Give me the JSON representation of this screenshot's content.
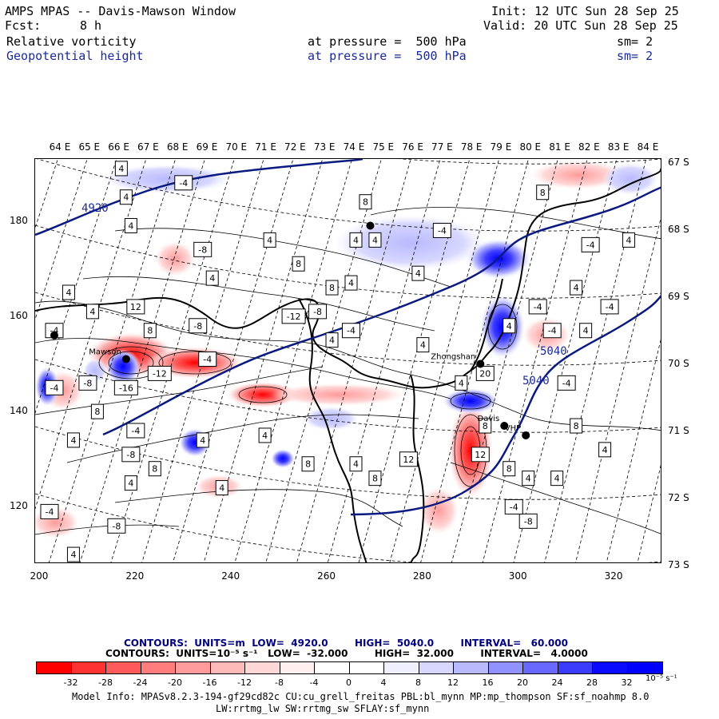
{
  "header": {
    "title": "AMPS MPAS -- Davis-Mawson Window",
    "fcst_label": "Fcst:",
    "fcst_value": "8 h",
    "init": "Init: 12 UTC Sun 28 Sep 25",
    "valid": "Valid: 20 UTC Sun 28 Sep 25",
    "fields": [
      {
        "name": "Relative vorticity",
        "level": "at pressure =  500 hPa",
        "smoothing": "sm= 2"
      },
      {
        "name": "Geopotential height",
        "level": "at pressure =  500 hPa",
        "smoothing": "sm= 2"
      }
    ]
  },
  "map": {
    "lon_labels": [
      "64 E",
      "65 E",
      "66 E",
      "67 E",
      "68 E",
      "69 E",
      "70 E",
      "71 E",
      "72 E",
      "73 E",
      "74 E",
      "75 E",
      "76 E",
      "77 E",
      "78 E",
      "79 E",
      "80 E",
      "81 E",
      "82 E",
      "83 E",
      "84 E"
    ],
    "lat_labels": [
      "67 S",
      "68 S",
      "69 S",
      "70 S",
      "71 S",
      "72 S",
      "73 S"
    ],
    "x_ticks": [
      "200",
      "220",
      "240",
      "260",
      "280",
      "300",
      "320"
    ],
    "y_ticks": [
      "120",
      "140",
      "160",
      "180"
    ],
    "x_range": [
      199,
      330
    ],
    "y_range": [
      193,
      108
    ],
    "stations": [
      {
        "name": "Davis",
        "x": 297,
        "y": 137
      },
      {
        "name": "VHP",
        "x": 301.5,
        "y": 135
      },
      {
        "name": "Zhongshan",
        "x": 292,
        "y": 150
      },
      {
        "name": "Mawson",
        "x": 218,
        "y": 151
      },
      {
        "name": "",
        "x": 203,
        "y": 156
      },
      {
        "name": "",
        "x": 269,
        "y": 179
      }
    ],
    "height_contours": [
      {
        "value": "4920",
        "color": "#1a2a9a"
      },
      {
        "value": "5040",
        "color": "#1a2a9a"
      }
    ],
    "vorticity_labels": [
      {
        "text": "4",
        "x": 207,
        "y": 110
      },
      {
        "text": "-8",
        "x": 216,
        "y": 116
      },
      {
        "text": "-4",
        "x": 202,
        "y": 119
      },
      {
        "text": "8",
        "x": 224,
        "y": 128
      },
      {
        "text": "4",
        "x": 219,
        "y": 125
      },
      {
        "text": "-8",
        "x": 219,
        "y": 131
      },
      {
        "text": "4",
        "x": 207,
        "y": 134
      },
      {
        "text": "-4",
        "x": 220,
        "y": 136
      },
      {
        "text": "8",
        "x": 212,
        "y": 140
      },
      {
        "text": "4",
        "x": 238,
        "y": 124
      },
      {
        "text": "4",
        "x": 234,
        "y": 134
      },
      {
        "text": "-4",
        "x": 203,
        "y": 145
      },
      {
        "text": "-8",
        "x": 210,
        "y": 146
      },
      {
        "text": "-16",
        "x": 218,
        "y": 145
      },
      {
        "text": "-12",
        "x": 225,
        "y": 148
      },
      {
        "text": "-4",
        "x": 235,
        "y": 151
      },
      {
        "text": "-4",
        "x": 203,
        "y": 157
      },
      {
        "text": "8",
        "x": 223,
        "y": 157
      },
      {
        "text": "-8",
        "x": 233,
        "y": 158
      },
      {
        "text": "12",
        "x": 220,
        "y": 162
      },
      {
        "text": "4",
        "x": 211,
        "y": 161
      },
      {
        "text": "4",
        "x": 206,
        "y": 165
      },
      {
        "text": "4",
        "x": 236,
        "y": 168
      },
      {
        "text": "-8",
        "x": 234,
        "y": 174
      },
      {
        "text": "4",
        "x": 219,
        "y": 179
      },
      {
        "text": "4",
        "x": 218,
        "y": 185
      },
      {
        "text": "-4",
        "x": 230,
        "y": 188
      },
      {
        "text": "4",
        "x": 217,
        "y": 191
      },
      {
        "text": "8",
        "x": 256,
        "y": 129
      },
      {
        "text": "4",
        "x": 266,
        "y": 129
      },
      {
        "text": "12",
        "x": 277,
        "y": 130
      },
      {
        "text": "8",
        "x": 270,
        "y": 126
      },
      {
        "text": "4",
        "x": 247,
        "y": 135
      },
      {
        "text": "-12",
        "x": 253,
        "y": 160
      },
      {
        "text": "-8",
        "x": 258,
        "y": 161
      },
      {
        "text": "-4",
        "x": 265,
        "y": 157
      },
      {
        "text": "8",
        "x": 254,
        "y": 171
      },
      {
        "text": "4",
        "x": 261,
        "y": 155
      },
      {
        "text": "4",
        "x": 265,
        "y": 167
      },
      {
        "text": "4",
        "x": 266,
        "y": 176
      },
      {
        "text": "4",
        "x": 270,
        "y": 176
      },
      {
        "text": "8",
        "x": 268,
        "y": 184
      },
      {
        "text": "4",
        "x": 248,
        "y": 176
      },
      {
        "text": "8",
        "x": 261,
        "y": 166
      },
      {
        "text": "-8",
        "x": 302,
        "y": 117
      },
      {
        "text": "-4",
        "x": 299,
        "y": 120
      },
      {
        "text": "4",
        "x": 302,
        "y": 126
      },
      {
        "text": "4",
        "x": 308,
        "y": 126
      },
      {
        "text": "12",
        "x": 292,
        "y": 131
      },
      {
        "text": "8",
        "x": 298,
        "y": 128
      },
      {
        "text": "8",
        "x": 293,
        "y": 137
      },
      {
        "text": "4",
        "x": 318,
        "y": 132
      },
      {
        "text": "8",
        "x": 312,
        "y": 137
      },
      {
        "text": "4",
        "x": 288,
        "y": 146
      },
      {
        "text": "20",
        "x": 293,
        "y": 148
      },
      {
        "text": "-4",
        "x": 310,
        "y": 146
      },
      {
        "text": "4",
        "x": 280,
        "y": 154
      },
      {
        "text": "-4",
        "x": 307,
        "y": 157
      },
      {
        "text": "4",
        "x": 298,
        "y": 158
      },
      {
        "text": "-4",
        "x": 304,
        "y": 162
      },
      {
        "text": "4",
        "x": 314,
        "y": 157
      },
      {
        "text": "-4",
        "x": 319,
        "y": 162
      },
      {
        "text": "4",
        "x": 312,
        "y": 166
      },
      {
        "text": "-4",
        "x": 315,
        "y": 175
      },
      {
        "text": "4",
        "x": 323,
        "y": 176
      },
      {
        "text": "-4",
        "x": 284,
        "y": 178
      },
      {
        "text": "8",
        "x": 305,
        "y": 186
      },
      {
        "text": "4",
        "x": 279,
        "y": 169
      }
    ]
  },
  "contour_info": {
    "line1": "CONTOURS:  UNITS=m  LOW=  4920.0        HIGH=  5040.0        INTERVAL=   60.000",
    "line2": "CONTOURS:  UNITS=10⁻⁵ s⁻¹   LOW=  -32.000        HIGH=  32.000        INTERVAL=   4.0000"
  },
  "colorbar": {
    "tick_labels": [
      "-32",
      "-28",
      "-24",
      "-20",
      "-16",
      "-12",
      "-8",
      "-4",
      "0",
      "4",
      "8",
      "12",
      "16",
      "20",
      "24",
      "28",
      "32"
    ],
    "unit": "10⁻⁵ s⁻¹",
    "colors": [
      "#ff0000",
      "#ff3232",
      "#ff5a5a",
      "#ff7d7d",
      "#ff9b9b",
      "#ffb9b9",
      "#ffd7d7",
      "#ffefef",
      "#ffffff",
      "#ffffff",
      "#efefff",
      "#d7d7ff",
      "#b9b9ff",
      "#9191ff",
      "#6969ff",
      "#3c3cff",
      "#0a0aff",
      "#0000ff"
    ]
  },
  "model_info": {
    "line1": "Model Info: MPASv8.2.3-194-gf29cd82c CU:cu_grell_freitas PBL:bl_mynn MP:mp_thompson SF:sf_noahmp 8.0",
    "line2": "LW:rrtmg_lw SW:rrtmg_sw SFLAY:sf_mynn"
  }
}
